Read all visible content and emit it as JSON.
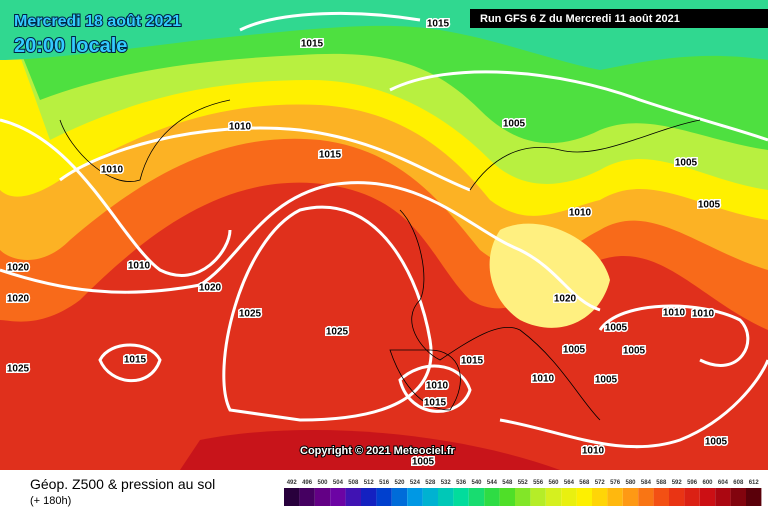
{
  "header": {
    "date": "Mercredi 18 août 2021",
    "time": "20:00 locale",
    "run": "Run GFS 6 Z du Mercredi 11 août 2021"
  },
  "copyright": "Copyright © 2021 Meteociel.fr",
  "footer": {
    "title": "Géop. Z500 & pression au sol",
    "lead": "(+ 180h)"
  },
  "isobar_labels": [
    "1015",
    "1015",
    "1010",
    "1005",
    "1015",
    "1010",
    "1005",
    "1005",
    "1010",
    "1020",
    "1010",
    "1020",
    "1020",
    "1020",
    "1025",
    "1025",
    "1010",
    "1010",
    "1005",
    "1005",
    "1005",
    "1015",
    "1015",
    "1025",
    "1010",
    "1005",
    "1010",
    "1015",
    "1010",
    "1005",
    "1005"
  ],
  "legend": [
    492,
    496,
    500,
    504,
    508,
    512,
    516,
    520,
    524,
    528,
    532,
    536,
    540,
    544,
    548,
    552,
    556,
    560,
    564,
    568,
    572,
    576,
    580,
    584,
    588,
    592,
    596,
    600,
    604,
    608,
    612
  ]
}
